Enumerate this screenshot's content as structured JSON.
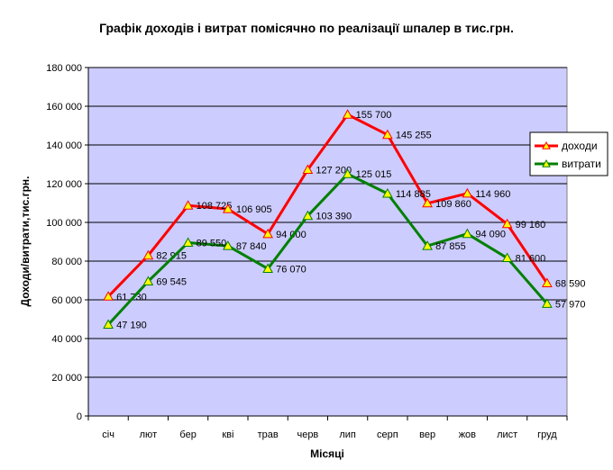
{
  "chart_data": {
    "type": "line",
    "title": "Графік доходів і витрат помісячно по реалізації шпалер в тис.грн.",
    "xlabel": "Місяці",
    "ylabel": "Доходи/витрати,тис.грн.",
    "categories": [
      "січ",
      "лют",
      "бер",
      "кві",
      "трав",
      "черв",
      "лип",
      "серп",
      "вер",
      "жов",
      "лист",
      "груд"
    ],
    "ylim": [
      0,
      180000
    ],
    "yticks": [
      0,
      20000,
      40000,
      60000,
      80000,
      100000,
      120000,
      140000,
      160000,
      180000
    ],
    "ytick_labels": [
      "0",
      "20 000",
      "40 000",
      "60 000",
      "80 000",
      "100 000",
      "120 000",
      "140 000",
      "160 000",
      "180 000"
    ],
    "grid": "horizontal",
    "legend_position": "right",
    "plot_background": "#ccccff",
    "marker_color": "#ffff00",
    "series": [
      {
        "name": "доходи",
        "color": "#ff0000",
        "values": [
          61730,
          82915,
          108725,
          106905,
          94000,
          127200,
          155700,
          145255,
          109860,
          114960,
          99160,
          68590
        ],
        "labels": [
          "61 730",
          "82 915",
          "108 725",
          "106 905",
          "94 000",
          "127 200",
          "155 700",
          "145 255",
          "109 860",
          "114 960",
          "99 160",
          "68 590"
        ]
      },
      {
        "name": "витрати",
        "color": "#008000",
        "values": [
          47190,
          69545,
          89550,
          87840,
          76070,
          103390,
          125015,
          114885,
          87855,
          94090,
          81600,
          57970
        ],
        "labels": [
          "47 190",
          "69 545",
          "89 550",
          "87 840",
          "76 070",
          "103 390",
          "125 015",
          "114 885",
          "87 855",
          "94 090",
          "81 600",
          "57 970"
        ]
      }
    ]
  }
}
